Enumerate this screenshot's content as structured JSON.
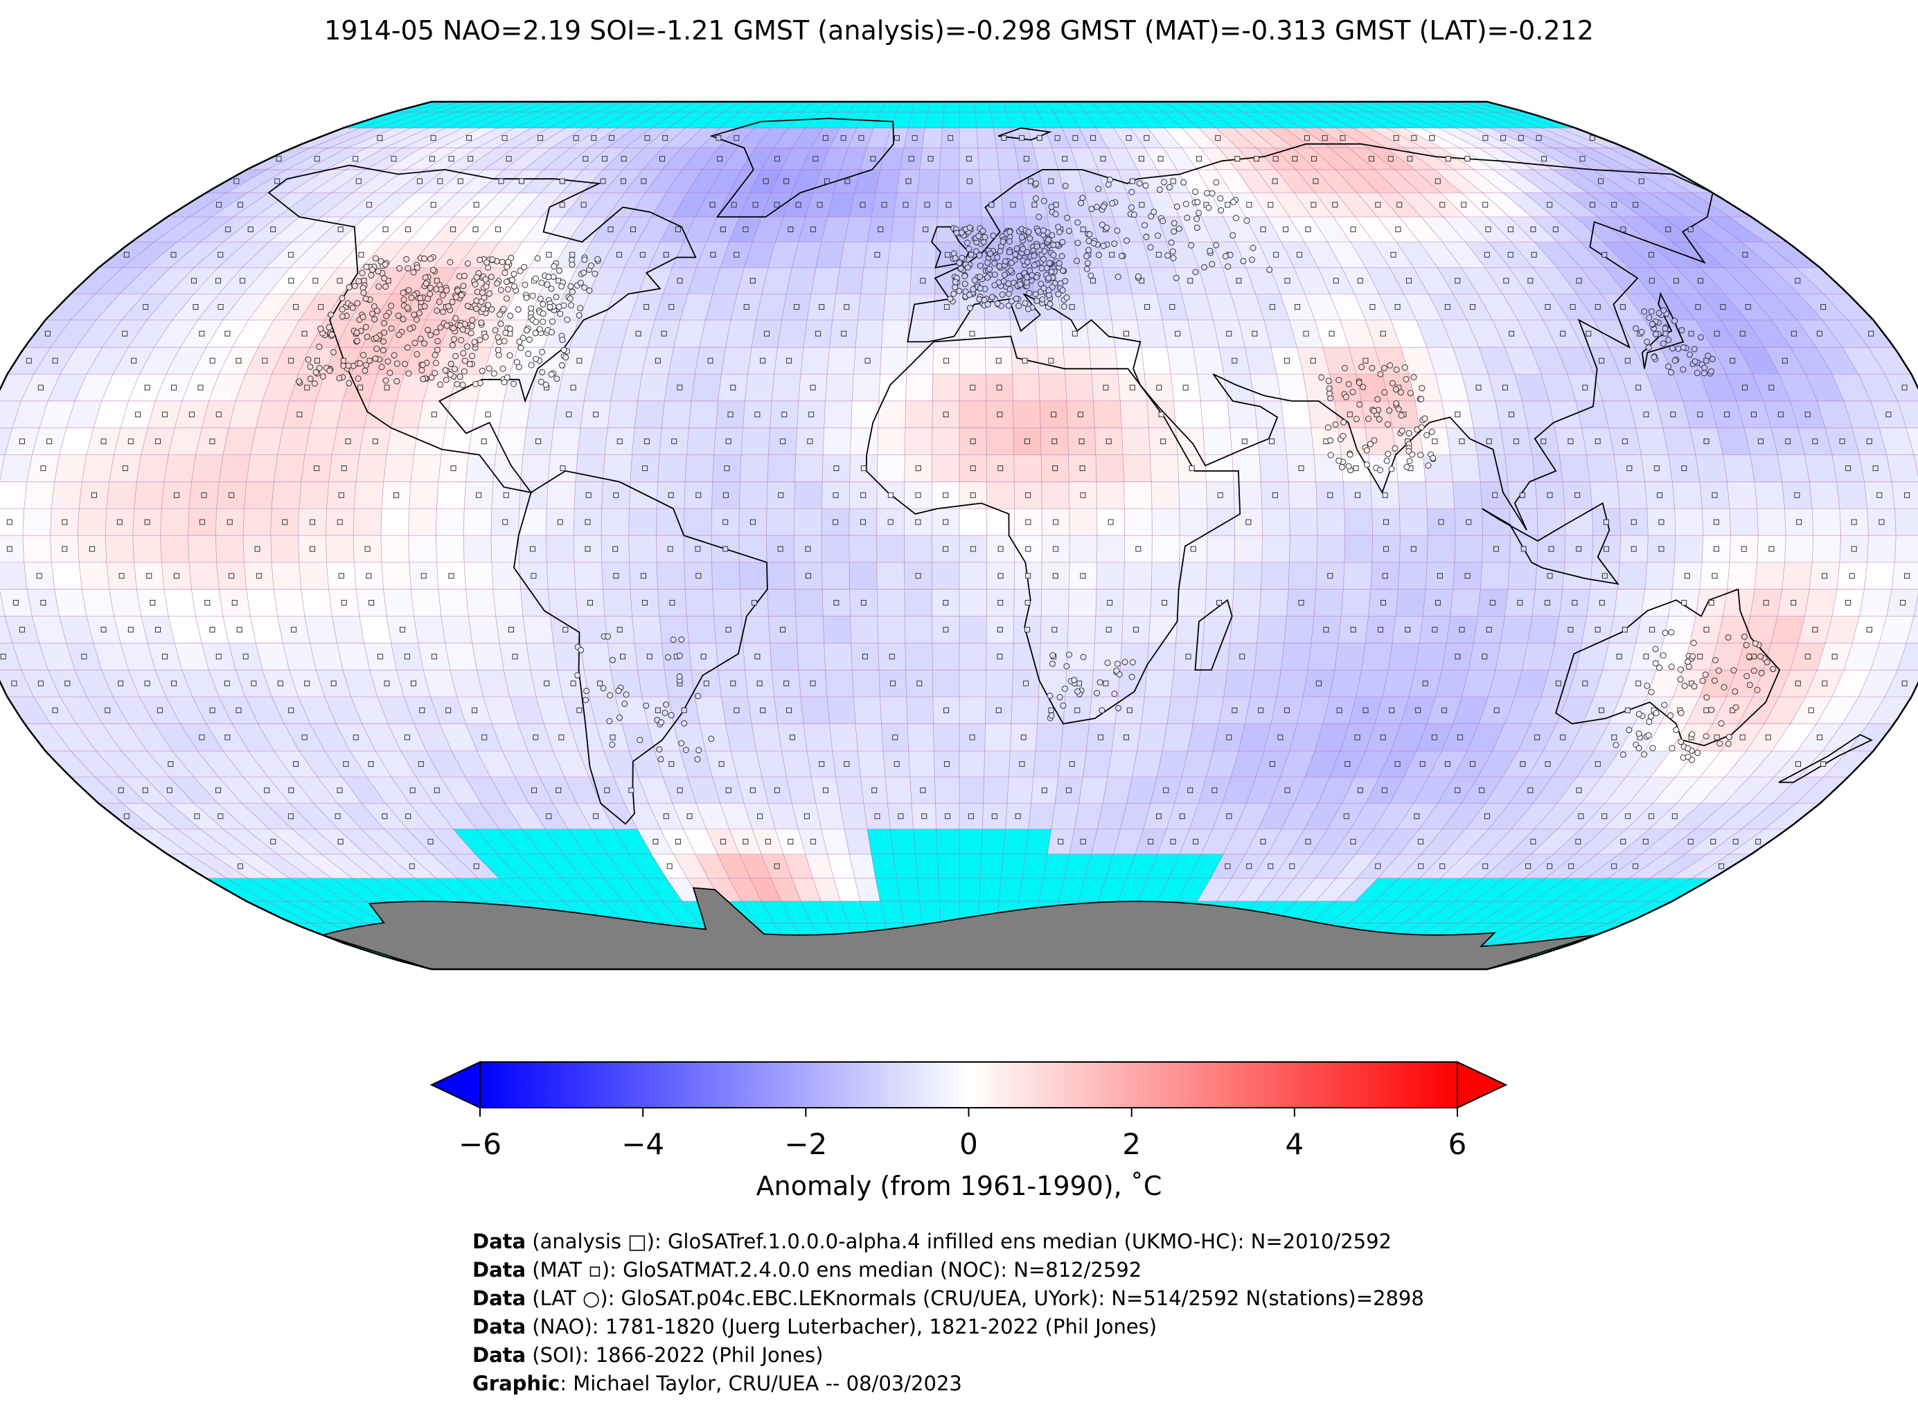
{
  "title": "1914-05 NAO=2.19 SOI=-1.21 GMST (analysis)=-0.298 GMST (MAT)=-0.313 GMST (LAT)=-0.212",
  "map": {
    "colors": {
      "sea_ice": "#00f5f7",
      "antarctica": "#7f7f7f",
      "grid": "#b06ab0",
      "coast": "#000000"
    },
    "anomaly_regions": [
      {
        "name": "western-north-america",
        "value": 1.2
      },
      {
        "name": "northern-siberia",
        "value": 1.3
      },
      {
        "name": "sahara",
        "value": 1.1
      },
      {
        "name": "india",
        "value": 1.4
      },
      {
        "name": "eastern-australia",
        "value": 1.0
      },
      {
        "name": "south-pacific-east",
        "value": 1.1
      },
      {
        "name": "drake-passage-south",
        "value": 1.6
      },
      {
        "name": "greenland-north-atlantic",
        "value": -2.4
      },
      {
        "name": "northeast-siberia",
        "value": -2.0
      },
      {
        "name": "north-pacific-west",
        "value": -1.8
      },
      {
        "name": "indian-ocean-south",
        "value": -1.5
      },
      {
        "name": "central-europe",
        "value": -1.6
      }
    ]
  },
  "colorbar": {
    "min": -6,
    "max": 6,
    "ticks": [
      "−6",
      "−4",
      "−2",
      "0",
      "2",
      "4",
      "6"
    ],
    "color_low": "#0000ff",
    "color_mid": "#ffffff",
    "color_high": "#ff0000",
    "label": "Anomaly (from 1961-1990), ˚C"
  },
  "credits": [
    {
      "bold": "Data",
      "text": " (analysis □): GloSATref.1.0.0.0-alpha.4 infilled ens median (UKMO-HC): N=2010/2592"
    },
    {
      "bold": "Data",
      "text": " (MAT ▫): GloSATMAT.2.4.0.0 ens median (NOC): N=812/2592"
    },
    {
      "bold": "Data",
      "text": " (LAT ○): GloSAT.p04c.EBC.LEKnormals (CRU/UEA, UYork): N=514/2592 N(stations)=2898"
    },
    {
      "bold": "Data",
      "text": " (NAO): 1781-1820 (Juerg Luterbacher), 1821-2022 (Phil Jones)"
    },
    {
      "bold": "Data",
      "text": " (SOI): 1866-2022 (Phil Jones)"
    },
    {
      "bold": "Graphic",
      "text": ": Michael Taylor, CRU/UEA -- 08/03/2023"
    }
  ]
}
